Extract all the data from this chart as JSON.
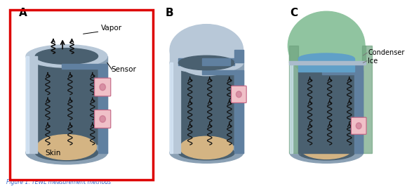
{
  "background": "#ffffff",
  "labels": [
    "A",
    "B",
    "C"
  ],
  "wall_color_light": "#b8c8d8",
  "wall_color_mid": "#8aa0b4",
  "wall_color_dark": "#6080a0",
  "interior_color": "#4a6070",
  "interior_dark": "#3a5060",
  "skin_color": "#d4b483",
  "sensor_fill": "#f0c0c8",
  "sensor_edge": "#c06080",
  "green_top": "#90c4a0",
  "green_dark": "#70a480",
  "blue_ice": "#60a0c8",
  "blue_ice_light": "#90c0d8",
  "arrow_color": "#111111",
  "label_fontsize": 11,
  "annot_fontsize": 7.5,
  "red_box_color": "#dd0000"
}
